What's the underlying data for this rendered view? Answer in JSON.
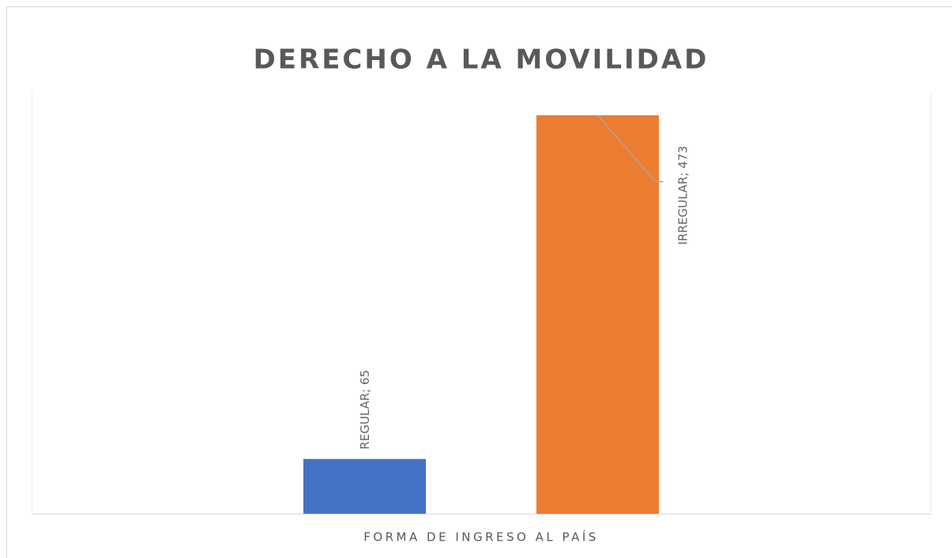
{
  "chart_data": {
    "type": "bar",
    "title": "DERECHO  A LA MOVILIDAD",
    "categories": [
      "FORMA DE INGRESO AL PAÍS"
    ],
    "series": [
      {
        "color": "#4472c4",
        "values": [
          65
        ],
        "value_labels": [
          "REGULAR; 65"
        ]
      },
      {
        "color": "#ed7d31",
        "values": [
          473
        ],
        "value_labels": [
          "IRREGULAR; 473"
        ]
      }
    ],
    "ylim": [
      0,
      500
    ]
  }
}
